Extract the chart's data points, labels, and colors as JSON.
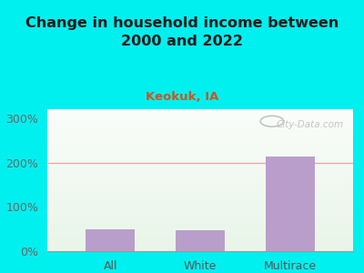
{
  "title": "Change in household income between\n2000 and 2022",
  "subtitle": "Keokuk, IA",
  "categories": [
    "All",
    "White",
    "Multirace"
  ],
  "values": [
    50,
    47,
    213
  ],
  "bar_color": "#b99ecb",
  "title_fontsize": 11.5,
  "title_color": "#1a1a1a",
  "subtitle_fontsize": 9.5,
  "subtitle_color": "#cc5522",
  "tick_label_fontsize": 9,
  "yticks": [
    0,
    100,
    200,
    300
  ],
  "ytick_labels": [
    "0%",
    "100%",
    "200%",
    "300%"
  ],
  "ylim": [
    0,
    320
  ],
  "background_outer": "#00f0f0",
  "grid_color": "#f0a0a0",
  "watermark": "City-Data.com",
  "watermark_color": "#bbbbbb",
  "bar_width": 0.55
}
